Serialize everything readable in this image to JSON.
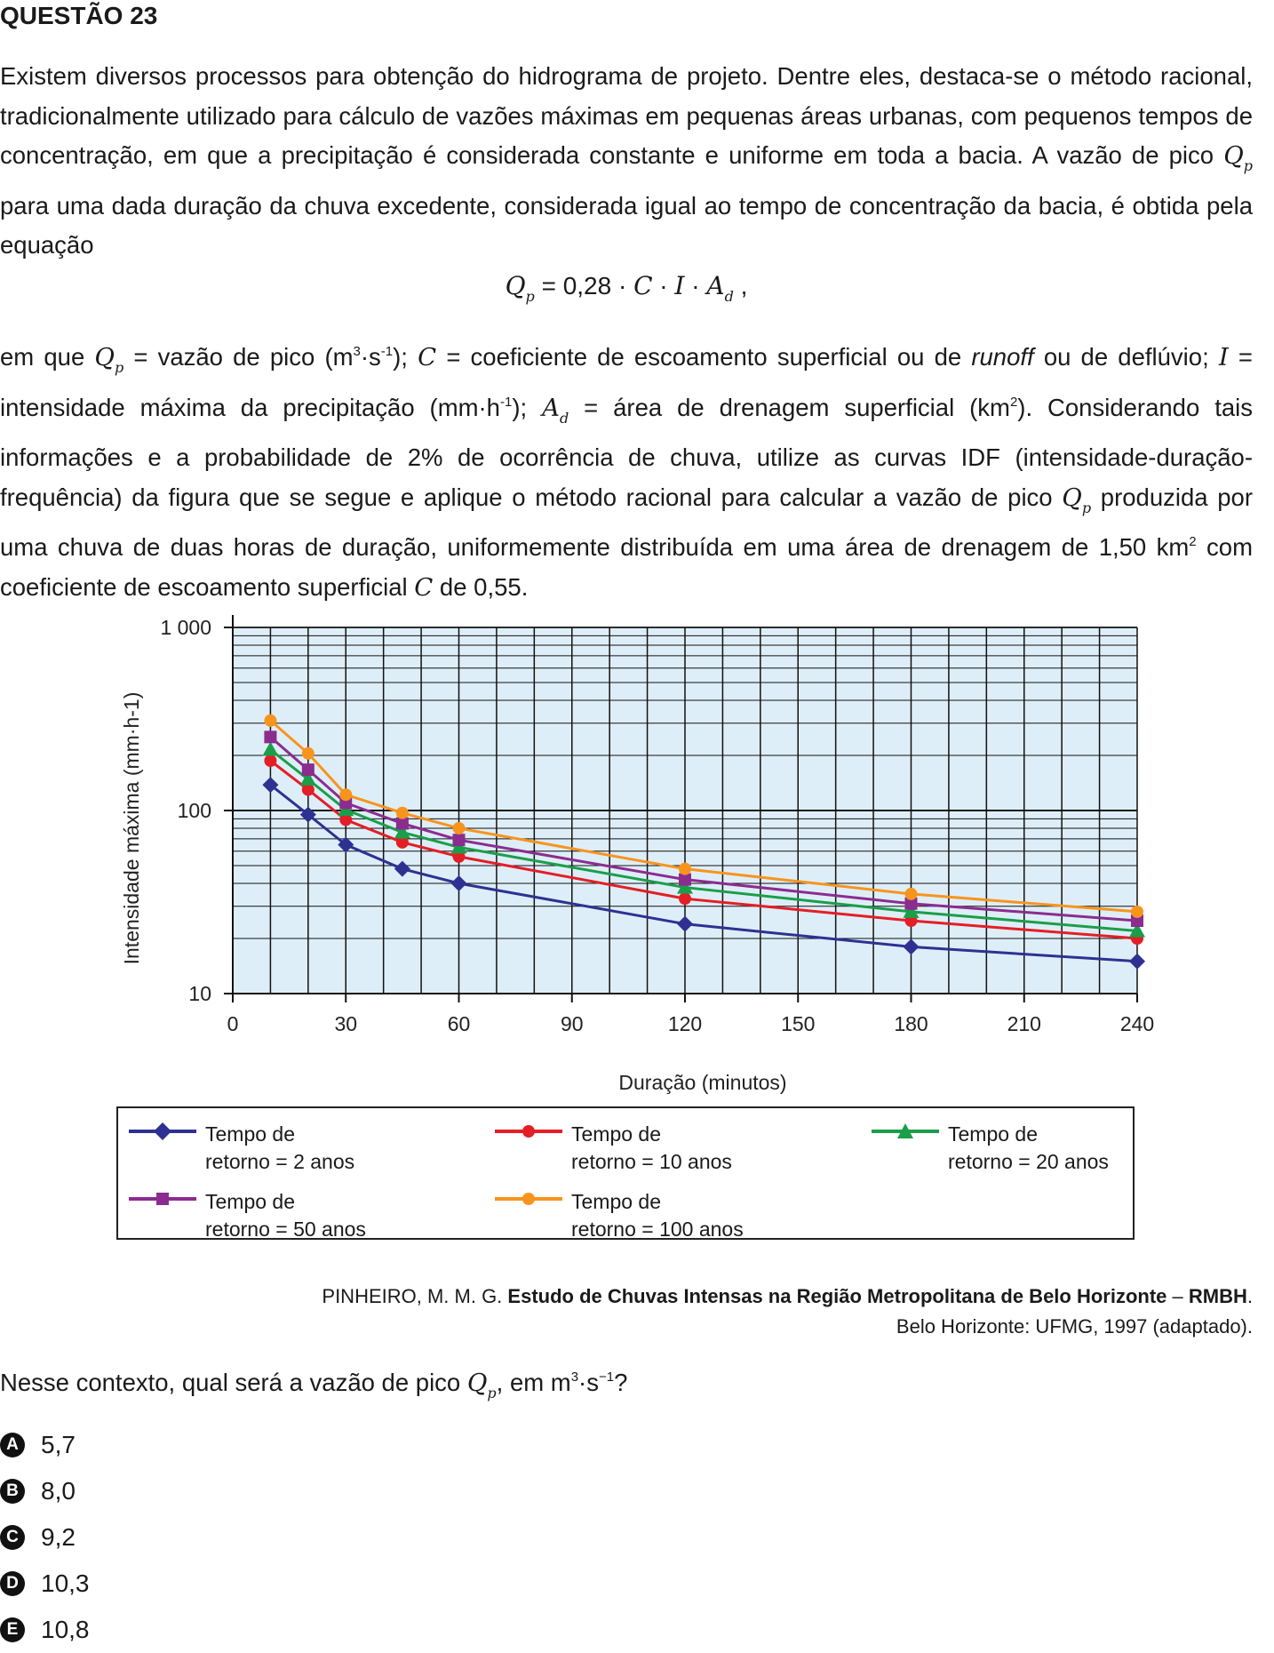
{
  "question_title": "QUESTÃO 23",
  "paragraph1": [
    "Existem diversos processos para obtenção do hidrograma de projeto. Dentre eles, destaca-se o método racional, tradicionalmente utilizado para cálculo de vazões máximas em pequenas áreas urbanas, com pequenos tempos de concentração, em que a precipitação é considerada constante e uniforme em toda a bacia. A vazão de pico ",
    " para uma dada duração da chuva excedente, considerada igual ao tempo de concentração da bacia, é obtida pela equação"
  ],
  "equation": {
    "lhs": "Q",
    "lhs_sub": "p",
    "eq": " = 0,28 · ",
    "C": "C",
    "dot": " · ",
    "I": "I",
    "A": "A",
    "A_sub": "d",
    "end": " ,"
  },
  "paragraph2": {
    "t1": "em que ",
    "t2": " = vazão de pico (m",
    "t3": "3",
    "t4": "·s",
    "t5": "-1",
    "t6": "); ",
    "t7": " = coeficiente de escoamento superficial ou de ",
    "t8": "runoff",
    "t9": " ou de deflúvio; ",
    "t10": " = intensidade máxima da precipitação (mm·h",
    "t11": "-1",
    "t12": "); ",
    "t13": " = área de drenagem superficial (km",
    "t14": "2",
    "t15": "). Considerando tais informações e a probabilidade de 2% de ocorrência de chuva, utilize as curvas IDF (intensidade-duração-frequência) da figura que se segue e aplique o método racional para calcular a vazão de pico ",
    "t16": " produzida por uma chuva de duas horas de duração, uniformemente distribuída em uma área de drenagem de 1,50 km",
    "t17": "2",
    "t18": " com coeficiente de escoamento superficial ",
    "t19": " de 0,55."
  },
  "chart_data": {
    "type": "line",
    "xlabel": "Duração (minutos)",
    "ylabel": "Intensidade máxima (mm·h-1)",
    "x_ticks": [
      "0",
      "30",
      "60",
      "90",
      "120",
      "150",
      "180",
      "210",
      "240"
    ],
    "y_ticks": [
      "10",
      "100",
      "1 000"
    ],
    "xlim": [
      0,
      240
    ],
    "ylim": [
      10,
      1000
    ],
    "y_scale": "log",
    "grid": true,
    "x": [
      10,
      20,
      30,
      45,
      60,
      120,
      180,
      240
    ],
    "series": [
      {
        "name": "Tempo de retorno = 2 anos",
        "color": "#2e3192",
        "marker": "diamond",
        "values": [
          138,
          95,
          65,
          48,
          40,
          24,
          18,
          15
        ]
      },
      {
        "name": "Tempo de retorno = 10 anos",
        "color": "#e41e26",
        "marker": "circle",
        "values": [
          187,
          130,
          89,
          67,
          56,
          33,
          25,
          20
        ]
      },
      {
        "name": "Tempo de retorno = 20 anos",
        "color": "#1a9e49",
        "marker": "triangle",
        "values": [
          215,
          148,
          101,
          76,
          63,
          38,
          28,
          22
        ]
      },
      {
        "name": "Tempo de retorno = 50 anos",
        "color": "#8b2c8f",
        "marker": "square",
        "values": [
          252,
          167,
          110,
          85,
          69,
          42,
          31,
          25
        ]
      },
      {
        "name": "Tempo de retorno = 100 anos",
        "color": "#f7941d",
        "marker": "circle",
        "values": [
          310,
          205,
          122,
          97,
          80,
          48,
          35,
          28
        ]
      }
    ]
  },
  "legend": [
    {
      "l1": "Tempo de",
      "l2": "retorno = 2 anos"
    },
    {
      "l1": "Tempo de",
      "l2": "retorno = 10 anos"
    },
    {
      "l1": "Tempo de",
      "l2": "retorno = 20 anos"
    },
    {
      "l1": "Tempo de",
      "l2": "retorno = 50 anos"
    },
    {
      "l1": "Tempo de",
      "l2": "retorno = 100 anos"
    }
  ],
  "source": {
    "author": "PINHEIRO, M. M. G. ",
    "title": "Estudo de Chuvas Intensas na Região Metropolitana de Belo Horizonte",
    "dash": " – ",
    "abbr": "RMBH",
    "period": ".",
    "line2": "Belo Horizonte: UFMG, 1997 (adaptado)."
  },
  "question": {
    "t1": "Nesse contexto, qual será a vazão de pico ",
    "t2": ", em m",
    "t3": "3",
    "t4": "·s",
    "t5": "−1",
    "t6": "?"
  },
  "options": [
    {
      "letter": "A",
      "value": "5,7"
    },
    {
      "letter": "B",
      "value": "8,0"
    },
    {
      "letter": "C",
      "value": "9,2"
    },
    {
      "letter": "D",
      "value": "10,3"
    },
    {
      "letter": "E",
      "value": "10,8"
    }
  ]
}
